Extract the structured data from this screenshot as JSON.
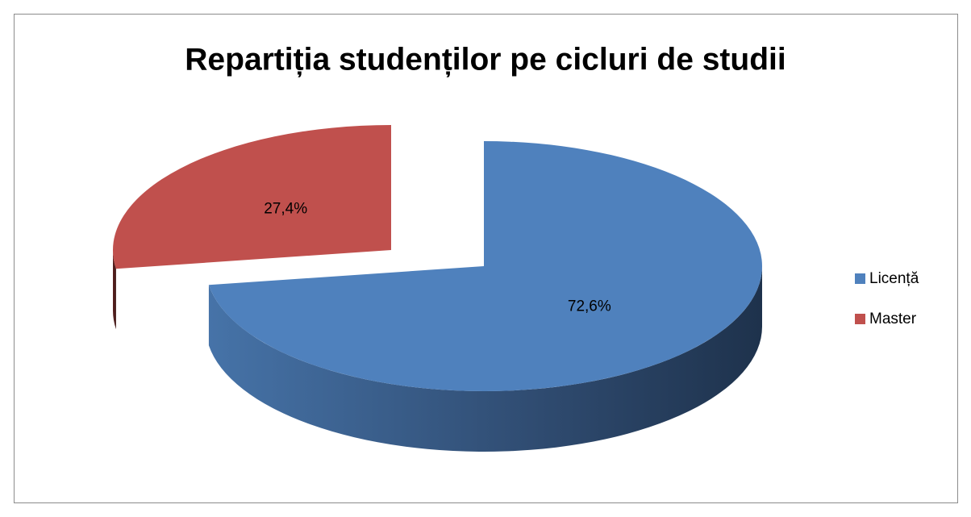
{
  "chart_data": {
    "type": "pie",
    "title": "Repartiția studenților pe cicluri de studii",
    "categories": [
      "Licență",
      "Master"
    ],
    "values": [
      72.6,
      27.4
    ],
    "value_labels": [
      "72,6%",
      "27,4%"
    ],
    "colors": [
      "#4f81bd",
      "#c0504d"
    ],
    "legend": "right",
    "explode": [
      false,
      true
    ]
  }
}
